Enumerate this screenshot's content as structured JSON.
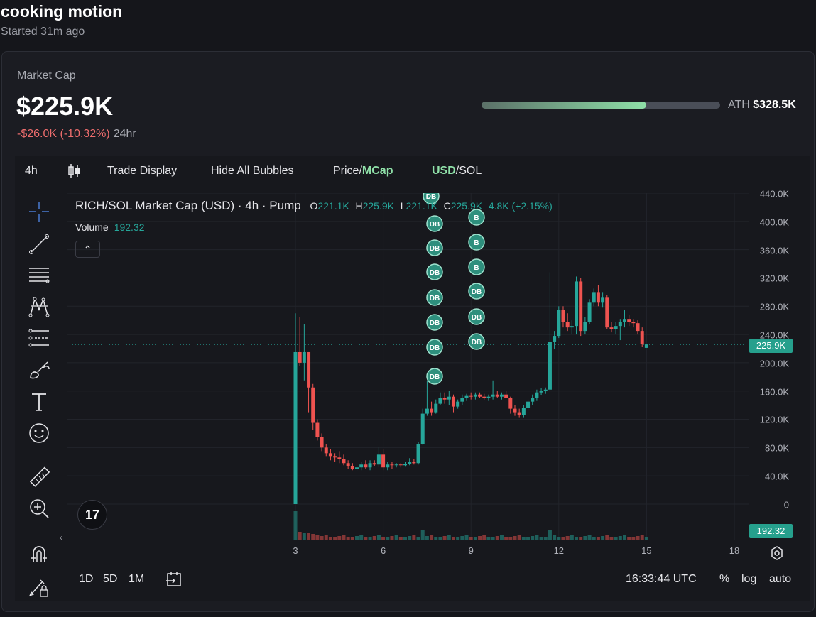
{
  "header": {
    "title": "cooking motion",
    "subtitle": "Started 31m ago"
  },
  "market": {
    "label": "Market Cap",
    "value": "$225.9K",
    "change": "-$26.0K (-10.32%)",
    "period": "24hr",
    "ath_label": "ATH",
    "ath_value": "$328.5K",
    "ath_progress": 0.69
  },
  "toolbar": {
    "interval": "4h",
    "trade_display": "Trade Display",
    "hide_bubbles": "Hide All Bubbles",
    "price_label": "Price/",
    "mcap_label": "MCap",
    "usd_label": "USD",
    "sol_label": "/SOL"
  },
  "legend": {
    "title": "RICH/SOL Market Cap (USD) · 4h · Pump",
    "o_key": "O",
    "o_val": "221.1K",
    "h_key": "H",
    "h_val": "225.9K",
    "l_key": "L",
    "l_val": "221.1K",
    "c_key": "C",
    "c_val": "225.9K",
    "change": "4.8K (+2.15%)",
    "volume_label": "Volume",
    "volume_value": "192.32"
  },
  "axis": {
    "y_ticks": [
      "440.0K",
      "400.0K",
      "360.0K",
      "320.0K",
      "280.0K",
      "240.0K",
      "200.0K",
      "160.0K",
      "120.0K",
      "80.0K",
      "40.0K",
      "0"
    ],
    "x_ticks": [
      "3",
      "6",
      "9",
      "12",
      "15",
      "18"
    ],
    "price_tag": "225.9K",
    "volume_tag": "192.32"
  },
  "bottom": {
    "range_1d": "1D",
    "range_5d": "5D",
    "range_1m": "1M",
    "time": "16:33:44 UTC",
    "pct": "%",
    "log": "log",
    "auto": "auto"
  },
  "bubbles": {
    "col1": [
      "DB",
      "DB",
      "DB",
      "DB",
      "DB",
      "DB",
      "DB",
      "DB"
    ],
    "col2": [
      "B",
      "B",
      "B",
      "DB",
      "DB",
      "DB"
    ]
  },
  "chart_data": {
    "type": "candlestick",
    "title": "RICH/SOL Market Cap (USD) · 4h · Pump",
    "ylim": [
      0,
      440000
    ],
    "x_ticks": [
      "3",
      "6",
      "9",
      "12",
      "15",
      "18"
    ],
    "up_color": "#26a69a",
    "down_color": "#ef5350",
    "candles": [
      {
        "x": 3.0,
        "o": 0,
        "h": 270000,
        "l": 0,
        "c": 215000
      },
      {
        "x": 3.15,
        "o": 215000,
        "h": 265000,
        "l": 195000,
        "c": 200000
      },
      {
        "x": 3.3,
        "o": 200000,
        "h": 255000,
        "l": 175000,
        "c": 215000
      },
      {
        "x": 3.45,
        "o": 215000,
        "h": 215000,
        "l": 130000,
        "c": 165000
      },
      {
        "x": 3.6,
        "o": 165000,
        "h": 170000,
        "l": 105000,
        "c": 115000
      },
      {
        "x": 3.75,
        "o": 115000,
        "h": 120000,
        "l": 90000,
        "c": 95000
      },
      {
        "x": 3.9,
        "o": 95000,
        "h": 100000,
        "l": 75000,
        "c": 80000
      },
      {
        "x": 4.05,
        "o": 80000,
        "h": 85000,
        "l": 68000,
        "c": 72000
      },
      {
        "x": 4.2,
        "o": 72000,
        "h": 78000,
        "l": 62000,
        "c": 68000
      },
      {
        "x": 4.35,
        "o": 68000,
        "h": 72000,
        "l": 60000,
        "c": 66000
      },
      {
        "x": 4.5,
        "o": 66000,
        "h": 75000,
        "l": 58000,
        "c": 64000
      },
      {
        "x": 4.65,
        "o": 64000,
        "h": 70000,
        "l": 55000,
        "c": 58000
      },
      {
        "x": 4.8,
        "o": 58000,
        "h": 62000,
        "l": 50000,
        "c": 54000
      },
      {
        "x": 4.95,
        "o": 54000,
        "h": 58000,
        "l": 48000,
        "c": 50000
      },
      {
        "x": 5.1,
        "o": 50000,
        "h": 55000,
        "l": 47000,
        "c": 52000
      },
      {
        "x": 5.25,
        "o": 52000,
        "h": 60000,
        "l": 48000,
        "c": 56000
      },
      {
        "x": 5.4,
        "o": 56000,
        "h": 62000,
        "l": 50000,
        "c": 52000
      },
      {
        "x": 5.55,
        "o": 52000,
        "h": 62000,
        "l": 48000,
        "c": 58000
      },
      {
        "x": 5.7,
        "o": 58000,
        "h": 62000,
        "l": 54000,
        "c": 56000
      },
      {
        "x": 5.85,
        "o": 56000,
        "h": 80000,
        "l": 52000,
        "c": 70000
      },
      {
        "x": 6.0,
        "o": 70000,
        "h": 78000,
        "l": 48000,
        "c": 52000
      },
      {
        "x": 6.15,
        "o": 52000,
        "h": 60000,
        "l": 48000,
        "c": 56000
      },
      {
        "x": 6.3,
        "o": 56000,
        "h": 60000,
        "l": 50000,
        "c": 55000
      },
      {
        "x": 6.45,
        "o": 55000,
        "h": 58000,
        "l": 52000,
        "c": 56000
      },
      {
        "x": 6.6,
        "o": 56000,
        "h": 58000,
        "l": 52000,
        "c": 55000
      },
      {
        "x": 6.75,
        "o": 55000,
        "h": 60000,
        "l": 53000,
        "c": 57000
      },
      {
        "x": 6.9,
        "o": 57000,
        "h": 65000,
        "l": 55000,
        "c": 60000
      },
      {
        "x": 7.05,
        "o": 60000,
        "h": 64000,
        "l": 56000,
        "c": 58000
      },
      {
        "x": 7.2,
        "o": 58000,
        "h": 88000,
        "l": 56000,
        "c": 85000
      },
      {
        "x": 7.35,
        "o": 85000,
        "h": 135000,
        "l": 84000,
        "c": 128000
      },
      {
        "x": 7.5,
        "o": 128000,
        "h": 175000,
        "l": 125000,
        "c": 135000
      },
      {
        "x": 7.65,
        "o": 135000,
        "h": 145000,
        "l": 125000,
        "c": 130000
      },
      {
        "x": 7.8,
        "o": 130000,
        "h": 148000,
        "l": 128000,
        "c": 142000
      },
      {
        "x": 7.95,
        "o": 142000,
        "h": 158000,
        "l": 140000,
        "c": 150000
      },
      {
        "x": 8.1,
        "o": 150000,
        "h": 158000,
        "l": 142000,
        "c": 148000
      },
      {
        "x": 8.25,
        "o": 148000,
        "h": 160000,
        "l": 140000,
        "c": 152000
      },
      {
        "x": 8.4,
        "o": 152000,
        "h": 155000,
        "l": 130000,
        "c": 138000
      },
      {
        "x": 8.55,
        "o": 138000,
        "h": 148000,
        "l": 135000,
        "c": 145000
      },
      {
        "x": 8.7,
        "o": 145000,
        "h": 155000,
        "l": 140000,
        "c": 150000
      },
      {
        "x": 8.85,
        "o": 150000,
        "h": 156000,
        "l": 146000,
        "c": 153000
      },
      {
        "x": 9.0,
        "o": 153000,
        "h": 158000,
        "l": 148000,
        "c": 152000
      },
      {
        "x": 9.15,
        "o": 152000,
        "h": 158000,
        "l": 148000,
        "c": 155000
      },
      {
        "x": 9.3,
        "o": 155000,
        "h": 158000,
        "l": 150000,
        "c": 152000
      },
      {
        "x": 9.45,
        "o": 152000,
        "h": 156000,
        "l": 148000,
        "c": 150000
      },
      {
        "x": 9.6,
        "o": 150000,
        "h": 155000,
        "l": 146000,
        "c": 152000
      },
      {
        "x": 9.75,
        "o": 152000,
        "h": 175000,
        "l": 148000,
        "c": 155000
      },
      {
        "x": 9.9,
        "o": 155000,
        "h": 160000,
        "l": 150000,
        "c": 152000
      },
      {
        "x": 10.05,
        "o": 152000,
        "h": 158000,
        "l": 148000,
        "c": 155000
      },
      {
        "x": 10.2,
        "o": 155000,
        "h": 160000,
        "l": 150000,
        "c": 150000
      },
      {
        "x": 10.35,
        "o": 150000,
        "h": 152000,
        "l": 128000,
        "c": 135000
      },
      {
        "x": 10.5,
        "o": 135000,
        "h": 140000,
        "l": 125000,
        "c": 130000
      },
      {
        "x": 10.65,
        "o": 130000,
        "h": 135000,
        "l": 122000,
        "c": 126000
      },
      {
        "x": 10.8,
        "o": 126000,
        "h": 140000,
        "l": 122000,
        "c": 136000
      },
      {
        "x": 10.95,
        "o": 136000,
        "h": 148000,
        "l": 132000,
        "c": 145000
      },
      {
        "x": 11.1,
        "o": 145000,
        "h": 155000,
        "l": 140000,
        "c": 150000
      },
      {
        "x": 11.25,
        "o": 150000,
        "h": 162000,
        "l": 146000,
        "c": 158000
      },
      {
        "x": 11.4,
        "o": 158000,
        "h": 164000,
        "l": 154000,
        "c": 160000
      },
      {
        "x": 11.55,
        "o": 160000,
        "h": 165000,
        "l": 156000,
        "c": 162000
      },
      {
        "x": 11.7,
        "o": 162000,
        "h": 328000,
        "l": 160000,
        "c": 230000
      },
      {
        "x": 11.85,
        "o": 230000,
        "h": 245000,
        "l": 220000,
        "c": 238000
      },
      {
        "x": 12.0,
        "o": 238000,
        "h": 280000,
        "l": 235000,
        "c": 275000
      },
      {
        "x": 12.15,
        "o": 275000,
        "h": 280000,
        "l": 250000,
        "c": 258000
      },
      {
        "x": 12.3,
        "o": 258000,
        "h": 270000,
        "l": 245000,
        "c": 250000
      },
      {
        "x": 12.45,
        "o": 250000,
        "h": 260000,
        "l": 240000,
        "c": 252000
      },
      {
        "x": 12.6,
        "o": 252000,
        "h": 322000,
        "l": 240000,
        "c": 315000
      },
      {
        "x": 12.75,
        "o": 315000,
        "h": 320000,
        "l": 238000,
        "c": 245000
      },
      {
        "x": 12.9,
        "o": 245000,
        "h": 265000,
        "l": 240000,
        "c": 258000
      },
      {
        "x": 13.05,
        "o": 258000,
        "h": 290000,
        "l": 255000,
        "c": 285000
      },
      {
        "x": 13.2,
        "o": 285000,
        "h": 305000,
        "l": 280000,
        "c": 300000
      },
      {
        "x": 13.35,
        "o": 300000,
        "h": 310000,
        "l": 280000,
        "c": 285000
      },
      {
        "x": 13.5,
        "o": 285000,
        "h": 300000,
        "l": 278000,
        "c": 292000
      },
      {
        "x": 13.65,
        "o": 292000,
        "h": 296000,
        "l": 248000,
        "c": 250000
      },
      {
        "x": 13.8,
        "o": 250000,
        "h": 258000,
        "l": 243000,
        "c": 248000
      },
      {
        "x": 13.95,
        "o": 248000,
        "h": 258000,
        "l": 240000,
        "c": 252000
      },
      {
        "x": 14.1,
        "o": 252000,
        "h": 262000,
        "l": 232000,
        "c": 258000
      },
      {
        "x": 14.25,
        "o": 258000,
        "h": 275000,
        "l": 250000,
        "c": 262000
      },
      {
        "x": 14.4,
        "o": 262000,
        "h": 268000,
        "l": 252000,
        "c": 258000
      },
      {
        "x": 14.55,
        "o": 258000,
        "h": 262000,
        "l": 250000,
        "c": 256000
      },
      {
        "x": 14.7,
        "o": 256000,
        "h": 260000,
        "l": 240000,
        "c": 245000
      },
      {
        "x": 14.85,
        "o": 245000,
        "h": 250000,
        "l": 222000,
        "c": 226000
      },
      {
        "x": 15.0,
        "o": 221100,
        "h": 225900,
        "l": 221100,
        "c": 225900
      }
    ],
    "volume_last": 192.32
  }
}
